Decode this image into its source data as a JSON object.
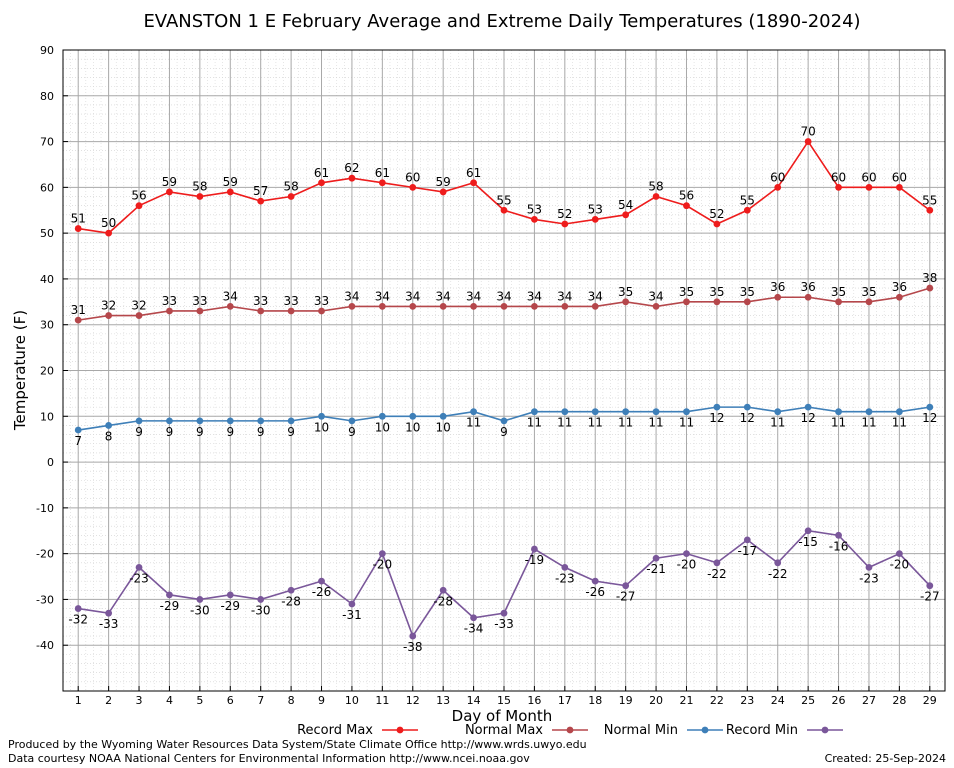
{
  "chart_data": {
    "type": "line",
    "title": "EVANSTON 1 E February Average and Extreme Daily Temperatures (1890-2024)",
    "xlabel": "Day of Month",
    "ylabel": "Temperature (F)",
    "x": [
      1,
      2,
      3,
      4,
      5,
      6,
      7,
      8,
      9,
      10,
      11,
      12,
      13,
      14,
      15,
      16,
      17,
      18,
      19,
      20,
      21,
      22,
      23,
      24,
      25,
      26,
      27,
      28,
      29
    ],
    "xlim": [
      0.5,
      29.5
    ],
    "ylim": [
      -50,
      90
    ],
    "yticks": [
      -40,
      -30,
      -20,
      -10,
      0,
      10,
      20,
      30,
      40,
      50,
      60,
      70,
      80,
      90
    ],
    "grid": true,
    "legend_position": "bottom",
    "series": [
      {
        "name": "Record Max",
        "color": "#ee1c1c",
        "label_pos": "above",
        "values": [
          51,
          50,
          56,
          59,
          58,
          59,
          57,
          58,
          61,
          62,
          61,
          60,
          59,
          61,
          55,
          53,
          52,
          53,
          54,
          58,
          56,
          52,
          55,
          60,
          70,
          60,
          60,
          60,
          55
        ]
      },
      {
        "name": "Normal Max",
        "color": "#b5474b",
        "label_pos": "above",
        "values": [
          31,
          32,
          32,
          33,
          33,
          34,
          33,
          33,
          33,
          34,
          34,
          34,
          34,
          34,
          34,
          34,
          34,
          34,
          35,
          34,
          35,
          35,
          35,
          36,
          36,
          35,
          35,
          36,
          38
        ]
      },
      {
        "name": "Normal Min",
        "color": "#3e7fb8",
        "label_pos": "below",
        "values": [
          7,
          8,
          9,
          9,
          9,
          9,
          9,
          9,
          10,
          9,
          10,
          10,
          10,
          11,
          9,
          11,
          11,
          11,
          11,
          11,
          11,
          12,
          12,
          11,
          12,
          11,
          11,
          11,
          12
        ]
      },
      {
        "name": "Record Min",
        "color": "#7a579a",
        "label_pos": "below",
        "values": [
          -32,
          -33,
          -23,
          -29,
          -30,
          -29,
          -30,
          -28,
          -26,
          -31,
          -20,
          -38,
          -28,
          -34,
          -33,
          -19,
          -23,
          -26,
          -27,
          -21,
          -20,
          -22,
          -17,
          -22,
          -15,
          -16,
          -23,
          -20,
          -27
        ]
      }
    ]
  },
  "footer": {
    "produced_by": "Produced by the Wyoming Water Resources Data System/State Climate Office http://www.wrds.uwyo.edu",
    "courtesy": "Data courtesy NOAA National Centers for Environmental Information http://www.ncei.noaa.gov",
    "created": "Created: 25-Sep-2024"
  }
}
